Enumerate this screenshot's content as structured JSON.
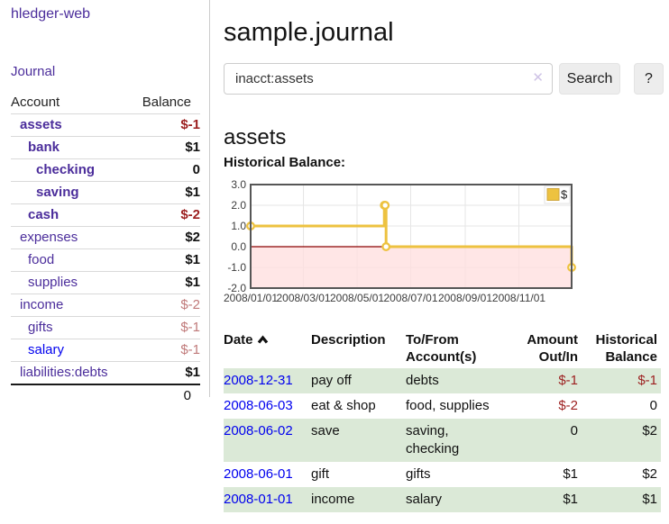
{
  "app": {
    "title": "hledger-web",
    "nav_journal": "Journal"
  },
  "sidebar": {
    "headers": {
      "account": "Account",
      "balance": "Balance"
    },
    "rows": [
      {
        "account": "assets",
        "balance": "$-1",
        "indent": 0,
        "bold": true,
        "balance_style": "neg-strong"
      },
      {
        "account": "bank",
        "balance": "$1",
        "indent": 1,
        "bold": true,
        "balance_style": "pos"
      },
      {
        "account": "checking",
        "balance": "0",
        "indent": 2,
        "bold": true,
        "balance_style": "pos"
      },
      {
        "account": "saving",
        "balance": "$1",
        "indent": 2,
        "bold": true,
        "balance_style": "pos"
      },
      {
        "account": "cash",
        "balance": "$-2",
        "indent": 1,
        "bold": true,
        "balance_style": "neg-strong"
      },
      {
        "account": "expenses",
        "balance": "$2",
        "indent": 0,
        "bold": false,
        "balance_style": "pos"
      },
      {
        "account": "food",
        "balance": "$1",
        "indent": 1,
        "bold": false,
        "balance_style": "pos"
      },
      {
        "account": "supplies",
        "balance": "$1",
        "indent": 1,
        "bold": false,
        "balance_style": "pos"
      },
      {
        "account": "income",
        "balance": "$-2",
        "indent": 0,
        "bold": false,
        "balance_style": "neg-soft"
      },
      {
        "account": "gifts",
        "balance": "$-1",
        "indent": 1,
        "bold": false,
        "balance_style": "neg-soft"
      },
      {
        "account": "salary",
        "balance": "$-1",
        "indent": 1,
        "bold": false,
        "balance_style": "neg-soft",
        "link_color": "blue"
      },
      {
        "account": "liabilities:debts",
        "balance": "$1",
        "indent": 0,
        "bold": false,
        "balance_style": "pos"
      }
    ],
    "total": "0"
  },
  "main": {
    "page_title": "sample.journal",
    "search": {
      "value": "inacct:assets",
      "clear_icon": "✕",
      "button": "Search",
      "help": "?"
    },
    "account_heading": "assets",
    "chart_label": "Historical Balance:"
  },
  "chart_data": {
    "type": "line",
    "step": true,
    "title": "Historical Balance",
    "series": [
      {
        "name": "$",
        "color": "#edc240",
        "points": [
          [
            "2008-01-01",
            1
          ],
          [
            "2008-06-01",
            2
          ],
          [
            "2008-06-02",
            2
          ],
          [
            "2008-06-03",
            0
          ],
          [
            "2008-12-31",
            -1
          ]
        ]
      }
    ],
    "ylim": [
      -2.0,
      3.0
    ],
    "yticks": [
      "3.0",
      "2.0",
      "1.0",
      "0.0",
      "-1.0",
      "-2.0"
    ],
    "xticks": [
      "2008/01/01",
      "2008/03/01",
      "2008/05/01",
      "2008/07/01",
      "2008/09/01",
      "2008/11/01"
    ],
    "x_range_days": 365,
    "grid": true,
    "legend_position": "top-right",
    "negative_region_color": "#ffdede",
    "zero_line_color": "#8b0000"
  },
  "transactions": {
    "headers": {
      "date": "Date",
      "description": "Description",
      "accounts_1": "To/From",
      "accounts_2": "Account(s)",
      "amount_1": "Amount",
      "amount_2": "Out/In",
      "balance_1": "Historical",
      "balance_2": "Balance"
    },
    "rows": [
      {
        "date": "2008-12-31",
        "description": "pay off",
        "accounts": "debts",
        "amount": "$-1",
        "balance": "$-1"
      },
      {
        "date": "2008-06-03",
        "description": "eat & shop",
        "accounts": "food, supplies",
        "amount": "$-2",
        "balance": "0"
      },
      {
        "date": "2008-06-02",
        "description": "save",
        "accounts": "saving, checking",
        "amount": "0",
        "balance": "$2"
      },
      {
        "date": "2008-06-01",
        "description": "gift",
        "accounts": "gifts",
        "amount": "$1",
        "balance": "$2"
      },
      {
        "date": "2008-01-01",
        "description": "income",
        "accounts": "salary",
        "amount": "$1",
        "balance": "$1"
      }
    ]
  },
  "colors": {
    "link_purple": "#4b2d9b",
    "link_blue": "#0000ee",
    "negative_strong": "#9c1f1f",
    "negative_soft": "#c07a7a",
    "row_stripe_green": "#dbe9d7",
    "chart_line_yellow": "#edc240",
    "chart_negative_fill": "#ffdede",
    "chart_zero_line": "#8b0000"
  }
}
